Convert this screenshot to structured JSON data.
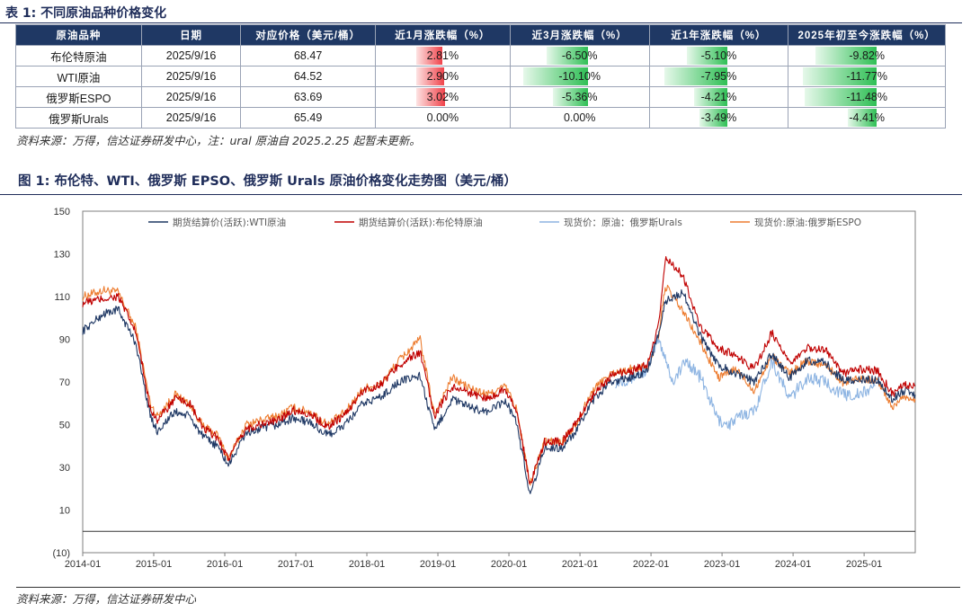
{
  "table_title": "表 1:  不同原油品种价格变化",
  "table": {
    "headers": [
      "原油品种",
      "日期",
      "对应价格（美元/桶）",
      "近1月涨跌幅（%）",
      "近3月涨跌幅（%）",
      "近1年涨跌幅（%）",
      "2025年初至今涨跌幅（%）"
    ],
    "rows": [
      {
        "name": "布伦特原油",
        "date": "2025/9/16",
        "price": "68.47",
        "m1": "2.81%",
        "m1v": 2.81,
        "m3": "-6.50%",
        "m3v": -6.5,
        "y1": "-5.10%",
        "y1v": -5.1,
        "ytd": "-9.82%",
        "ytdv": -9.82
      },
      {
        "name": "WTI原油",
        "date": "2025/9/16",
        "price": "64.52",
        "m1": "2.90%",
        "m1v": 2.9,
        "m3": "-10.10%",
        "m3v": -10.1,
        "y1": "-7.95%",
        "y1v": -7.95,
        "ytd": "-11.77%",
        "ytdv": -11.77
      },
      {
        "name": "俄罗斯ESPO",
        "date": "2025/9/16",
        "price": "63.69",
        "m1": "3.02%",
        "m1v": 3.02,
        "m3": "-5.36%",
        "m3v": -5.36,
        "y1": "-4.21%",
        "y1v": -4.21,
        "ytd": "-11.48%",
        "ytdv": -11.48
      },
      {
        "name": "俄罗斯Urals",
        "date": "2025/9/16",
        "price": "65.49",
        "m1": "0.00%",
        "m1v": 0.0,
        "m3": "0.00%",
        "m3v": 0.0,
        "y1": "-3.49%",
        "y1v": -3.49,
        "ytd": "-4.41%",
        "ytdv": -4.41
      }
    ]
  },
  "table_note": "资料来源：万得，信达证券研发中心，注：ural 原油自 2025.2.25 起暂未更新。",
  "chart_title": "图 1:  布伦特、WTI、俄罗斯 EPSO、俄罗斯 Urals 原油价格变化走势图（美元/桶）",
  "chart_note": "资料来源：万得，信达证券研发中心",
  "colors": {
    "wti": "#1f3864",
    "brent": "#c00000",
    "urals": "#8db4e2",
    "espo": "#ed7d31",
    "header": "#1f3864",
    "pos": "#f0434b",
    "neg": "#2fbf55"
  },
  "chart_data": {
    "type": "line",
    "ylim": [
      -10,
      150
    ],
    "yticks": [
      150,
      130,
      110,
      90,
      70,
      50,
      30,
      10,
      -10
    ],
    "ytick_labels": [
      "150",
      "130",
      "110",
      "90",
      "70",
      "50",
      "30",
      "10",
      "(10)"
    ],
    "xticks": [
      "2014-01",
      "2015-01",
      "2016-01",
      "2017-01",
      "2018-01",
      "2019-01",
      "2020-01",
      "2021-01",
      "2022-01",
      "2023-01",
      "2024-01",
      "2025-01"
    ],
    "x_start": 2014.0,
    "x_end": 2025.72,
    "legend_position": "top",
    "series": [
      {
        "name": "期货结算价(活跃):WTI原油",
        "key": "wti",
        "x": [
          2014.0,
          2014.3,
          2014.5,
          2014.75,
          2014.95,
          2015.05,
          2015.3,
          2015.5,
          2015.7,
          2015.9,
          2016.05,
          2016.3,
          2016.5,
          2016.75,
          2016.95,
          2017.2,
          2017.45,
          2017.7,
          2017.95,
          2018.2,
          2018.45,
          2018.75,
          2018.95,
          2019.2,
          2019.45,
          2019.7,
          2019.95,
          2020.1,
          2020.3,
          2020.5,
          2020.75,
          2020.95,
          2021.2,
          2021.45,
          2021.7,
          2021.95,
          2022.1,
          2022.2,
          2022.45,
          2022.7,
          2022.95,
          2023.2,
          2023.45,
          2023.7,
          2023.95,
          2024.2,
          2024.45,
          2024.7,
          2024.95,
          2025.2,
          2025.4,
          2025.55,
          2025.72
        ],
        "y": [
          94,
          102,
          104,
          88,
          54,
          47,
          56,
          54,
          44,
          40,
          31,
          46,
          48,
          50,
          53,
          51,
          45,
          50,
          60,
          63,
          70,
          73,
          47,
          62,
          58,
          56,
          61,
          52,
          17,
          39,
          39,
          47,
          62,
          70,
          72,
          75,
          92,
          108,
          112,
          91,
          78,
          74,
          70,
          83,
          72,
          80,
          79,
          71,
          71,
          71,
          62,
          66,
          64
        ]
      },
      {
        "name": "期货结算价(活跃):布伦特原油",
        "key": "brent",
        "x": [
          2014.0,
          2014.3,
          2014.5,
          2014.75,
          2014.95,
          2015.05,
          2015.3,
          2015.5,
          2015.7,
          2015.9,
          2016.05,
          2016.3,
          2016.5,
          2016.75,
          2016.95,
          2017.2,
          2017.45,
          2017.7,
          2017.95,
          2018.2,
          2018.45,
          2018.75,
          2018.95,
          2019.2,
          2019.45,
          2019.7,
          2019.95,
          2020.1,
          2020.3,
          2020.5,
          2020.75,
          2020.95,
          2021.2,
          2021.45,
          2021.7,
          2021.95,
          2022.1,
          2022.2,
          2022.45,
          2022.7,
          2022.95,
          2023.2,
          2023.45,
          2023.7,
          2023.95,
          2024.2,
          2024.45,
          2024.7,
          2024.95,
          2025.2,
          2025.4,
          2025.55,
          2025.72
        ],
        "y": [
          107,
          109,
          110,
          93,
          58,
          52,
          62,
          60,
          48,
          44,
          34,
          48,
          50,
          52,
          57,
          55,
          49,
          55,
          66,
          69,
          78,
          84,
          54,
          68,
          65,
          62,
          67,
          57,
          22,
          42,
          42,
          51,
          65,
          73,
          75,
          78,
          95,
          128,
          120,
          95,
          86,
          82,
          76,
          93,
          78,
          86,
          85,
          74,
          76,
          75,
          64,
          69,
          68
        ]
      },
      {
        "name": "现货价：原油：俄罗斯Urals",
        "key": "urals",
        "x": [
          2021.5,
          2021.75,
          2021.95,
          2022.1,
          2022.2,
          2022.3,
          2022.5,
          2022.7,
          2022.95,
          2023.1,
          2023.3,
          2023.45,
          2023.7,
          2023.95,
          2024.2,
          2024.45,
          2024.7,
          2024.95,
          2025.15
        ],
        "y": [
          70,
          72,
          76,
          90,
          82,
          70,
          80,
          72,
          52,
          50,
          55,
          56,
          80,
          62,
          72,
          70,
          64,
          64,
          68
        ]
      },
      {
        "name": "现货价:原油:俄罗斯ESPO",
        "key": "espo",
        "x": [
          2014.0,
          2014.3,
          2014.5,
          2014.75,
          2014.95,
          2015.05,
          2015.3,
          2015.5,
          2015.7,
          2015.9,
          2016.05,
          2016.3,
          2016.5,
          2016.75,
          2016.95,
          2017.2,
          2017.45,
          2017.7,
          2017.95,
          2018.2,
          2018.45,
          2018.75,
          2018.95,
          2019.2,
          2019.45,
          2019.7,
          2019.95,
          2020.1,
          2020.3,
          2020.5,
          2020.75,
          2020.95,
          2021.2,
          2021.45,
          2021.7,
          2021.95,
          2022.1,
          2022.2,
          2022.45,
          2022.7,
          2022.95,
          2023.2,
          2023.45,
          2023.7,
          2023.95,
          2024.2,
          2024.45,
          2024.7,
          2024.95,
          2025.2,
          2025.4,
          2025.55,
          2025.72
        ],
        "y": [
          110,
          113,
          112,
          95,
          60,
          54,
          64,
          60,
          49,
          45,
          34,
          50,
          52,
          54,
          58,
          56,
          50,
          56,
          67,
          69,
          80,
          90,
          55,
          72,
          67,
          64,
          68,
          58,
          22,
          42,
          42,
          51,
          67,
          74,
          76,
          77,
          90,
          115,
          103,
          88,
          72,
          76,
          66,
          82,
          74,
          80,
          78,
          70,
          72,
          70,
          58,
          63,
          62
        ]
      }
    ]
  }
}
